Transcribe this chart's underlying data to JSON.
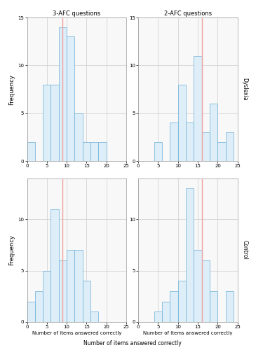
{
  "title_left": "3-AFC questions",
  "title_right": "2-AFC questions",
  "ylabel": "Frequency",
  "xlabel": "Number of items answered correctly",
  "label_right_top": "Dyslexia",
  "label_right_bottom": "Control",
  "dyslexia_3afc": {
    "bins": [
      2,
      4,
      6,
      8,
      10,
      12,
      14,
      16,
      18,
      20,
      22,
      24
    ],
    "counts": [
      2,
      0,
      8,
      8,
      14,
      13,
      5,
      2,
      2,
      2,
      0,
      0
    ],
    "vline": 9
  },
  "dyslexia_2afc": {
    "bins": [
      2,
      4,
      6,
      8,
      10,
      12,
      14,
      16,
      18,
      20,
      22,
      24
    ],
    "counts": [
      0,
      0,
      2,
      0,
      4,
      8,
      4,
      11,
      3,
      6,
      2,
      3
    ],
    "vline": 16
  },
  "control_3afc": {
    "bins": [
      2,
      4,
      6,
      8,
      10,
      12,
      14,
      16,
      18,
      20,
      22,
      24
    ],
    "counts": [
      2,
      3,
      5,
      11,
      6,
      7,
      7,
      4,
      1,
      0,
      0,
      0
    ],
    "vline": 9
  },
  "control_2afc": {
    "bins": [
      2,
      4,
      6,
      8,
      10,
      12,
      14,
      16,
      18,
      20,
      22,
      24
    ],
    "counts": [
      0,
      0,
      1,
      2,
      3,
      4,
      13,
      7,
      6,
      3,
      0,
      3
    ],
    "vline": 16
  },
  "bar_facecolor": "#ddeef8",
  "bar_edgecolor": "#6aaed6",
  "vline_color": "#f0a0a0",
  "grid_color": "#cccccc",
  "background_color": "#ffffff",
  "ax_background": "#f8f8f8",
  "xlim": [
    0,
    25
  ],
  "ylim_dyslexia": [
    0,
    15
  ],
  "ylim_control": [
    0,
    14
  ],
  "yticks_dyslexia": [
    0,
    5,
    10,
    15
  ],
  "yticks_control": [
    0,
    5,
    10
  ],
  "xticks": [
    0,
    5,
    10,
    15,
    20,
    25
  ]
}
